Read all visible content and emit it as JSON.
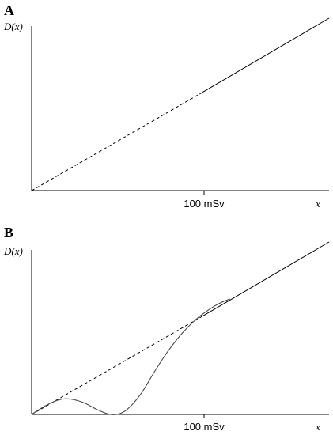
{
  "chart_data": [
    {
      "type": "line",
      "panel_label": "A",
      "ylabel": "D(x)",
      "xlabel": "x",
      "x_tick": {
        "value": 100,
        "label": "100 mSv"
      },
      "xlim": [
        0,
        174
      ],
      "ylim": [
        0,
        1
      ],
      "grid": false,
      "series": [
        {
          "style": "dashed",
          "x": [
            0,
            100
          ],
          "y": [
            0,
            0.57
          ]
        },
        {
          "style": "solid",
          "x": [
            100,
            174
          ],
          "y": [
            0.57,
            1.0
          ]
        }
      ]
    },
    {
      "type": "line",
      "panel_label": "B",
      "ylabel": "D(x)",
      "xlabel": "x",
      "x_tick": {
        "value": 100,
        "label": "100 mSv"
      },
      "xlim": [
        0,
        174
      ],
      "ylim": [
        0,
        1
      ],
      "grid": false,
      "series": [
        {
          "style": "dashed",
          "x": [
            0,
            100
          ],
          "y": [
            0,
            0.57
          ]
        },
        {
          "style": "solid",
          "x": [
            100,
            174
          ],
          "y": [
            0.57,
            1.0
          ]
        },
        {
          "style": "curve",
          "x": [
            0,
            8,
            16,
            22,
            30,
            38,
            44,
            50,
            56,
            64,
            72,
            80,
            88,
            96,
            104,
            110,
            116
          ],
          "y": [
            0,
            0.05,
            0.085,
            0.09,
            0.07,
            0.03,
            0.005,
            0.0,
            0.03,
            0.12,
            0.25,
            0.37,
            0.47,
            0.55,
            0.61,
            0.645,
            0.67
          ]
        }
      ]
    }
  ]
}
